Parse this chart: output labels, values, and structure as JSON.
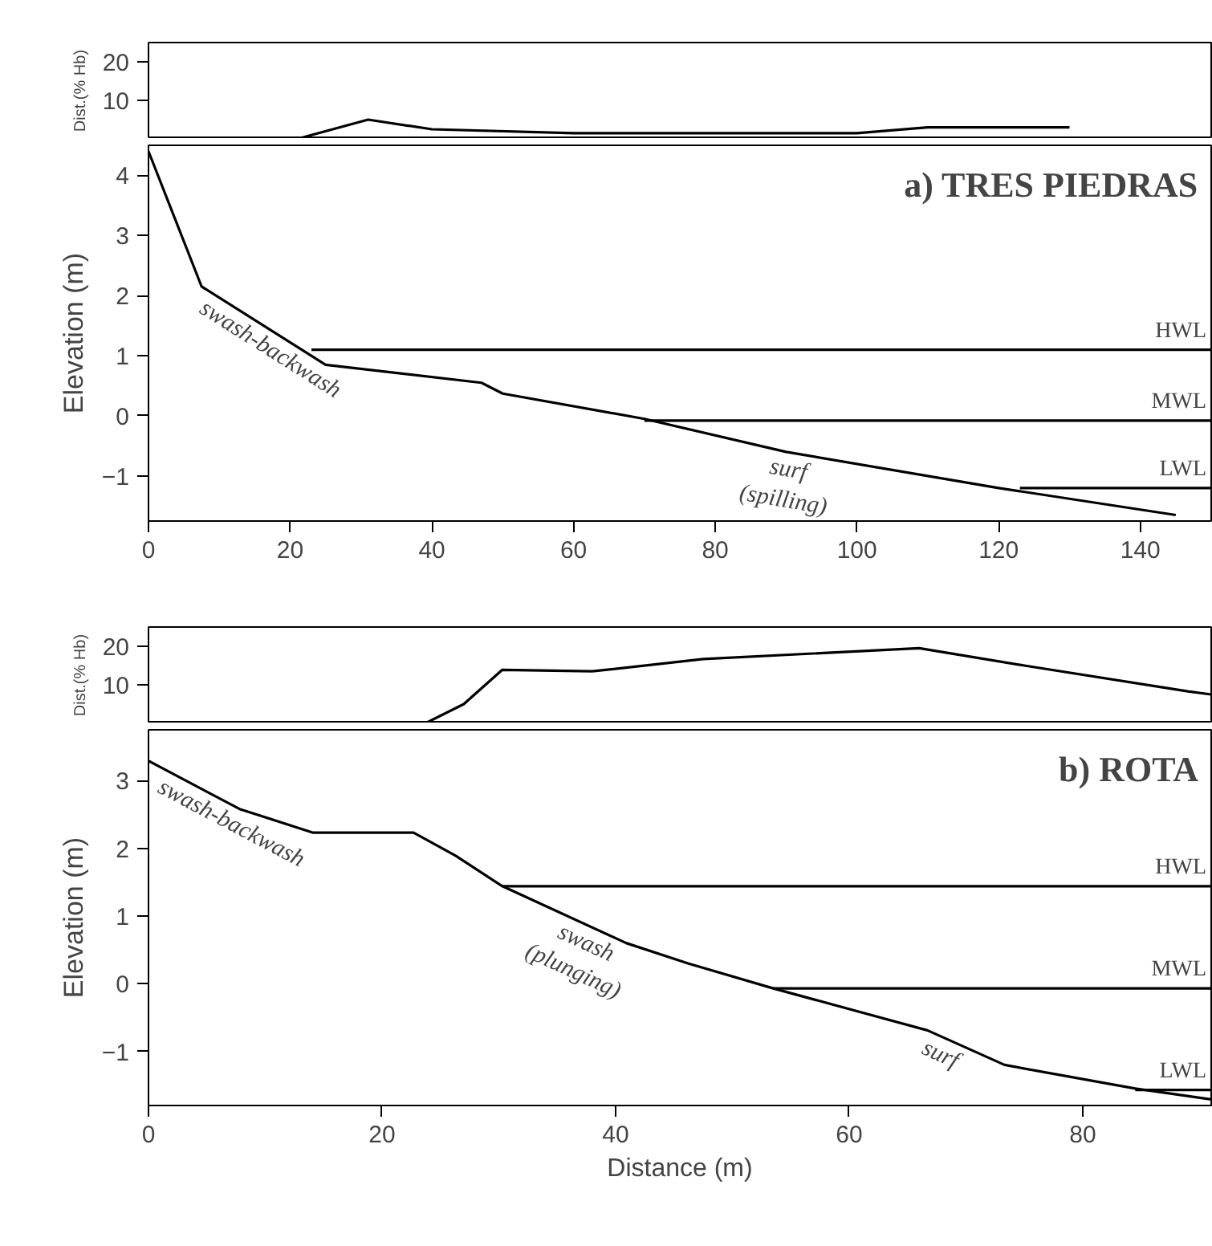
{
  "chart_data": [
    {
      "type": "line",
      "ylabel": "Dist.(% Hb)",
      "xlim": [
        0,
        150
      ],
      "ylim": [
        0,
        25
      ],
      "yticks": [
        10,
        20
      ],
      "tick_labels": "y",
      "series": [
        {
          "color": "#000000",
          "x": [
            21,
            31,
            40,
            60,
            100,
            110,
            130
          ],
          "values": [
            0,
            5,
            2.5,
            1.5,
            1.5,
            3,
            3
          ]
        }
      ]
    },
    {
      "type": "line",
      "title": "a) TRES PIEDRAS",
      "ylabel": "Elevation (m)",
      "xlim": [
        0,
        150
      ],
      "xticks": [
        0,
        20,
        40,
        60,
        80,
        100,
        120,
        140
      ],
      "ylim": [
        -1.75,
        4.5
      ],
      "yticks": [
        -1,
        0,
        1,
        2,
        3,
        4
      ],
      "annotations": [
        "swash-backwash",
        "surf\n(spilling)"
      ],
      "series": [
        {
          "color": "#000000",
          "x": [
            0,
            7.5,
            25,
            47,
            50,
            70,
            90,
            120,
            145
          ],
          "values": [
            4.4,
            2.15,
            0.85,
            0.55,
            0.37,
            -0.05,
            -0.6,
            -1.2,
            -1.65
          ]
        },
        {
          "name": "HWL",
          "color": "#000000",
          "x": [
            23,
            150
          ],
          "values": [
            1.1,
            1.1
          ]
        },
        {
          "name": "MWL",
          "color": "#000000",
          "x": [
            70,
            150
          ],
          "values": [
            -0.08,
            -0.08
          ]
        },
        {
          "name": "LWL",
          "color": "#000000",
          "x": [
            123,
            150
          ],
          "values": [
            -1.2,
            -1.2
          ]
        }
      ]
    },
    {
      "type": "line",
      "ylabel": "Dist.(% Hb)",
      "xlim": [
        0,
        91
      ],
      "ylim": [
        0,
        25
      ],
      "yticks": [
        10,
        20
      ],
      "tick_labels": "y",
      "series": [
        {
          "color": "#000000",
          "x": [
            23.7,
            27,
            30.3,
            38,
            47.5,
            66,
            75,
            89,
            91
          ],
          "values": [
            0,
            5,
            13.9,
            13.5,
            16.7,
            19.5,
            15,
            8.3,
            7.5
          ]
        }
      ]
    },
    {
      "type": "line",
      "title": "b) ROTA",
      "xlabel": "Distance (m)",
      "ylabel": "Elevation (m)",
      "xlim": [
        0,
        91
      ],
      "xticks": [
        0,
        20,
        40,
        60,
        80
      ],
      "ylim": [
        -1.8,
        3.75
      ],
      "yticks": [
        -1,
        0,
        1,
        2,
        3
      ],
      "annotations": [
        "swash-backwash",
        "swash\n(plunging)",
        "surf"
      ],
      "series": [
        {
          "color": "#000000",
          "x": [
            0,
            7.8,
            14.1,
            22.7,
            26.3,
            30.3,
            40.9,
            46.2,
            53.5,
            66.7,
            73.3,
            84.5,
            91
          ],
          "values": [
            3.29,
            2.58,
            2.23,
            2.23,
            1.89,
            1.44,
            0.6,
            0.3,
            -0.07,
            -0.69,
            -1.2,
            -1.55,
            -1.71
          ]
        },
        {
          "name": "HWL",
          "color": "#000000",
          "x": [
            30.3,
            91
          ],
          "values": [
            1.44,
            1.44
          ]
        },
        {
          "name": "MWL",
          "color": "#000000",
          "x": [
            53.5,
            91
          ],
          "values": [
            -0.07,
            -0.07
          ]
        },
        {
          "name": "LWL",
          "color": "#000000",
          "x": [
            84.5,
            91
          ],
          "values": [
            -1.57,
            -1.57
          ]
        }
      ]
    }
  ]
}
